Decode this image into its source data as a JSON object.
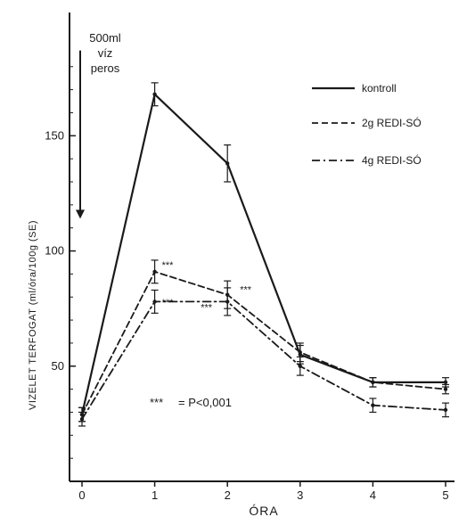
{
  "colors": {
    "ink": "#1a1a1a",
    "background": "#ffffff"
  },
  "chart_data": {
    "type": "line",
    "title": "",
    "xlabel": "ÓRA",
    "ylabel": "VIZELET TERFOGAT (ml/óra/100g (SE)",
    "x": [
      0,
      1,
      2,
      3,
      4,
      5
    ],
    "x_tick_labels": [
      "0",
      "1",
      "2",
      "3",
      "4",
      "5"
    ],
    "y_tick_values": [
      50,
      100,
      150
    ],
    "y_tick_labels": [
      "50",
      "100",
      "150"
    ],
    "xlim": [
      0,
      5.1
    ],
    "ylim": [
      0,
      195
    ],
    "grid": false,
    "legend_position": "top-right",
    "annotation": {
      "arrow_text": [
        "500ml",
        "víz",
        "peros"
      ],
      "arrow_from_y": 187,
      "arrow_to_y": 114
    },
    "significance_legend": "= P<0,001",
    "significance_marker": "***",
    "series": [
      {
        "name": "kontroll",
        "style": "solid",
        "values": [
          29,
          168,
          138,
          55,
          43,
          43
        ],
        "errors": [
          3,
          5,
          8,
          4,
          2,
          2
        ]
      },
      {
        "name": "2g REDI-SÓ",
        "style": "dashed",
        "values": [
          29,
          91,
          81,
          56,
          43,
          40
        ],
        "errors": [
          3,
          5,
          6,
          4,
          2,
          2
        ]
      },
      {
        "name": "4g REDI-SÓ",
        "style": "dashdot",
        "values": [
          27,
          78,
          78,
          50,
          33,
          31
        ],
        "errors": [
          3,
          5,
          6,
          4,
          3,
          3
        ]
      }
    ],
    "significance_labels": [
      {
        "x": 1,
        "y": 91,
        "text": "***"
      },
      {
        "x": 1,
        "y": 80,
        "text": "***"
      },
      {
        "x": 2,
        "y": 81,
        "text": "***"
      },
      {
        "x": 2,
        "y": 78,
        "text": "***"
      }
    ]
  }
}
